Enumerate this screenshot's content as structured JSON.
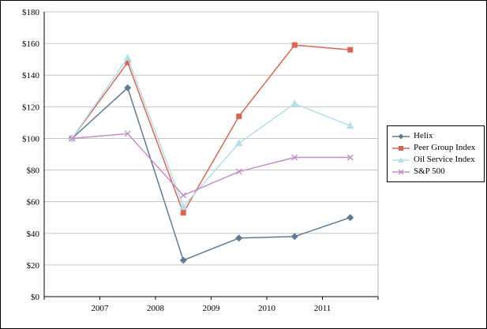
{
  "chart_data": {
    "type": "line",
    "title": "",
    "xlabel": "",
    "ylabel": "",
    "ylim": [
      0,
      180
    ],
    "ytick_step": 20,
    "y_tick_labels": [
      "$0",
      "$20",
      "$40",
      "$60",
      "$80",
      "$100",
      "$120",
      "$140",
      "$160",
      "$180"
    ],
    "x_tick_labels": [
      "2007",
      "2008",
      "2009",
      "2010",
      "2011"
    ],
    "points_per_series": 6,
    "grid": "horizontal",
    "legend_position": "right",
    "series": [
      {
        "name": "Helix",
        "marker": "diamond",
        "color": "#5f7b93",
        "values": [
          100,
          132,
          23,
          37,
          38,
          50
        ]
      },
      {
        "name": "Peer Group Index",
        "marker": "square",
        "color": "#dd6455",
        "values": [
          100,
          148,
          53,
          114,
          159,
          156
        ]
      },
      {
        "name": "Oil Service Index",
        "marker": "triangle",
        "color": "#b0e0ec",
        "values": [
          100,
          151,
          57,
          97,
          122,
          108
        ]
      },
      {
        "name": "S&P 500",
        "marker": "x",
        "color": "#c48fc8",
        "values": [
          100,
          103,
          64,
          79,
          88,
          88
        ]
      }
    ],
    "colors": {
      "gridline": "#c6c6c6",
      "axis": "#000000",
      "plot_border": "#a0a0a0",
      "background": "#ffffff"
    }
  },
  "legend": {
    "items": [
      {
        "label": "Helix"
      },
      {
        "label": "Peer Group Index"
      },
      {
        "label": "Oil Service Index"
      },
      {
        "label": "S&P 500"
      }
    ]
  }
}
